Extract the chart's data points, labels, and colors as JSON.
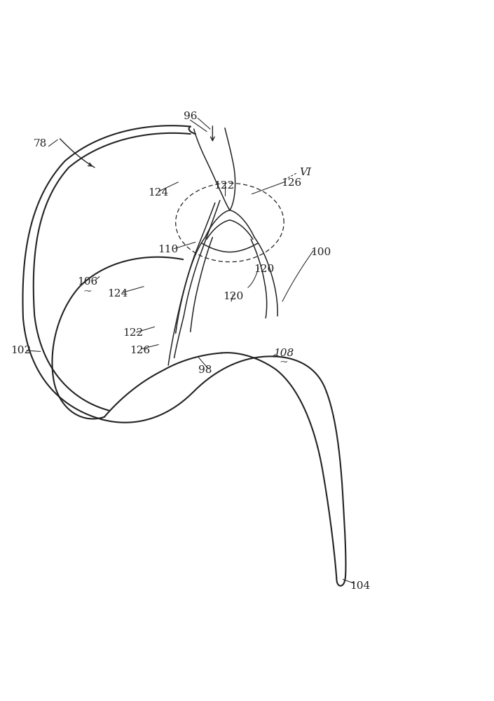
{
  "bg_color": "#ffffff",
  "line_color": "#222222",
  "lw_main": 1.5,
  "lw_inner": 1.1,
  "lw_thin": 0.85,
  "fontsize": 11
}
